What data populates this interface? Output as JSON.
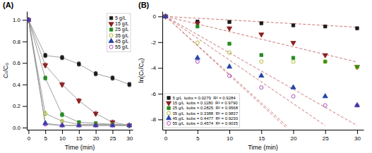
{
  "chart_data": [
    {
      "type": "line",
      "title": "(A)",
      "x_label": "Time (min)",
      "y_label": "Cₜ/C₀",
      "x": [
        0,
        5,
        10,
        15,
        20,
        25,
        30
      ],
      "xlim": [
        -0.5,
        31
      ],
      "ylim": [
        -0.02,
        1.08
      ],
      "xticks": [
        0,
        5,
        10,
        15,
        20,
        25,
        30
      ],
      "yticks": [
        {
          "value": 0,
          "label": "0.0"
        },
        0.2,
        0.4,
        0.6,
        0.8,
        {
          "value": 1,
          "label": "1.0"
        }
      ],
      "legend": "upper right",
      "series": [
        {
          "name": "5 g/L",
          "color": "#1a1a1a",
          "marker": "square",
          "values": [
            1.0,
            0.67,
            0.65,
            0.59,
            0.5,
            0.46,
            0.4
          ],
          "errors": [
            0.0,
            0.02,
            0.02,
            0.02,
            0.02,
            0.02,
            0.02
          ]
        },
        {
          "name": "15 g/L",
          "color": "#8B2020",
          "marker": "triangle-down",
          "values": [
            1.0,
            0.58,
            0.4,
            0.25,
            0.13,
            0.05,
            0.02
          ],
          "errors": [
            0.0,
            0.02,
            0.02,
            0.02,
            0.02,
            0.02,
            0.01
          ]
        },
        {
          "name": "25 g/L",
          "color": "#228B22",
          "marker": "square",
          "values": [
            1.0,
            0.46,
            0.12,
            0.05,
            0.04,
            0.03,
            0.02
          ],
          "errors": [
            0.0,
            0.02,
            0.02,
            0.01,
            0.01,
            0.01,
            0.01
          ]
        },
        {
          "name": "35 g/L",
          "color": "#9aaa00",
          "marker": "circle-open",
          "values": [
            1.0,
            0.13,
            0.06,
            0.03,
            0.03,
            0.03,
            0.02
          ],
          "errors": [
            0.0,
            0.02,
            0.01,
            0.01,
            0.01,
            0.01,
            0.01
          ]
        },
        {
          "name": "45 g/L",
          "color": "#2244aa",
          "marker": "triangle-up",
          "values": [
            1.0,
            0.04,
            0.02,
            0.02,
            0.02,
            0.02,
            0.02
          ],
          "errors": [
            0.0,
            0.01,
            0.01,
            0.01,
            0.01,
            0.01,
            0.01
          ]
        },
        {
          "name": "55 g/L",
          "color": "#9922aa",
          "marker": "circle-open",
          "values": [
            1.0,
            0.03,
            0.02,
            0.02,
            0.02,
            0.02,
            0.02
          ],
          "errors": [
            0.0,
            0.01,
            0.01,
            0.01,
            0.01,
            0.01,
            0.01
          ]
        }
      ]
    },
    {
      "type": "scatter",
      "title": "(B)",
      "x_label": "Time (min)",
      "y_label": "ln(Cₜ/C₀)",
      "x": [
        0,
        5,
        10,
        15,
        20,
        25,
        30
      ],
      "xlim": [
        -0.5,
        31
      ],
      "ylim": [
        -8.8,
        0.4
      ],
      "xticks": [
        0,
        5,
        10,
        15,
        20,
        25,
        30
      ],
      "yticks": [
        0,
        -2,
        -4,
        -6,
        -8
      ],
      "legend": "lower left",
      "series": [
        {
          "name": "5 g/L  kobs = 0.0279  R² = 0.9284",
          "color": "#1a1a1a",
          "marker": "square",
          "values": [
            0.0,
            -0.4,
            -0.43,
            -0.53,
            -0.69,
            -0.78,
            -0.92
          ]
        },
        {
          "name": "15 g/L  kobs = 0.1180  R² = 0.9790",
          "color": "#8B2020",
          "marker": "triangle-down",
          "values": [
            0.0,
            -0.54,
            -0.92,
            -1.39,
            -2.04,
            -3.0,
            -3.91
          ]
        },
        {
          "name": "25 g/L  kobs = 0.2825  R² = 0.9568",
          "color": "#228B22",
          "marker": "square",
          "values": [
            0.0,
            -0.78,
            -2.12,
            -3.0,
            -3.22,
            -3.51,
            -3.91
          ]
        },
        {
          "name": "35 g/L  kobs = 0.3388  R² = 0.9837",
          "color": "#9aaa00",
          "marker": "circle-open",
          "values": [
            0.0,
            -2.04,
            -2.81,
            -3.51,
            -3.51,
            -3.51,
            -3.91
          ]
        },
        {
          "name": "45 g/L  kobs = 0.4477  R² = 0.9230",
          "color": "#2244aa",
          "marker": "triangle-up",
          "values": [
            0.0,
            -3.22,
            -3.91,
            -4.61,
            -5.52,
            -6.21,
            -6.91
          ]
        },
        {
          "name": "55 g/L  kobs = 0.4574  R² = 0.9035",
          "color": "#9922aa",
          "marker": "circle-open",
          "values": [
            0.0,
            -3.51,
            -4.61,
            -5.52,
            -6.21,
            -6.91,
            -6.91
          ]
        },
        {
          "type": "line",
          "line_style": "dashed",
          "color": "#cc7777",
          "x": [
            0,
            30
          ],
          "values": [
            0,
            -0.837
          ]
        },
        {
          "type": "line",
          "line_style": "dashed",
          "color": "#cc7777",
          "x": [
            0,
            30
          ],
          "values": [
            0,
            -3.54
          ]
        },
        {
          "type": "line",
          "line_style": "dashed",
          "color": "#cc7777",
          "x": [
            0,
            30
          ],
          "values": [
            0,
            -8.475
          ]
        },
        {
          "type": "line",
          "line_style": "dashed",
          "color": "#cc7777",
          "x": [
            0,
            25
          ],
          "values": [
            0,
            -8.47
          ]
        },
        {
          "type": "line",
          "line_style": "dashed",
          "color": "#cc7777",
          "x": [
            0,
            19
          ],
          "values": [
            0,
            -8.5063
          ]
        },
        {
          "type": "line",
          "line_style": "dashed",
          "color": "#cc7777",
          "x": [
            0,
            19
          ],
          "values": [
            0,
            -8.6906
          ]
        }
      ]
    }
  ]
}
